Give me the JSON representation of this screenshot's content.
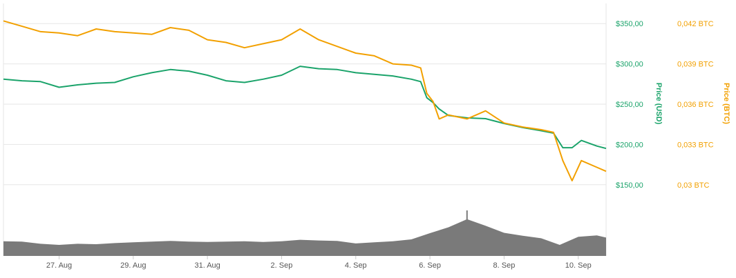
{
  "chart_data": {
    "type": "line",
    "x_axis": {
      "type": "date",
      "tick_labels": [
        "27. Aug",
        "29. Aug",
        "31. Aug",
        "2. Sep",
        "4. Sep",
        "6. Sep",
        "8. Sep",
        "10. Sep"
      ],
      "range": [
        "2018-08-25T12:00",
        "2018-09-10T18:00"
      ]
    },
    "y_axis_left": {
      "label": "Price (USD)",
      "tick_labels": [
        "$150,00",
        "$200,00",
        "$250,00",
        "$300,00",
        "$350,00"
      ],
      "tick_values": [
        150,
        200,
        250,
        300,
        350
      ],
      "range": [
        125,
        375
      ],
      "color": "#1aa36a"
    },
    "y_axis_right": {
      "label": "Price (BTC)",
      "tick_labels": [
        "0,03 BTC",
        "0,033 BTC",
        "0,036 BTC",
        "0,039 BTC",
        "0,042 BTC"
      ],
      "tick_values": [
        0.03,
        0.033,
        0.036,
        0.039,
        0.042
      ],
      "range": [
        0.0285,
        0.0435
      ],
      "color": "#f2a000"
    },
    "grid": true,
    "legend": "none",
    "series": [
      {
        "axis": "usd",
        "color": "#1aa36a",
        "points": [
          [
            "2018-08-25T12:00",
            281
          ],
          [
            "2018-08-26T00:00",
            279
          ],
          [
            "2018-08-26T12:00",
            278
          ],
          [
            "2018-08-27T00:00",
            271
          ],
          [
            "2018-08-27T12:00",
            274
          ],
          [
            "2018-08-28T00:00",
            276
          ],
          [
            "2018-08-28T12:00",
            277
          ],
          [
            "2018-08-29T00:00",
            284
          ],
          [
            "2018-08-29T12:00",
            289
          ],
          [
            "2018-08-30T00:00",
            293
          ],
          [
            "2018-08-30T12:00",
            291
          ],
          [
            "2018-08-31T00:00",
            286
          ],
          [
            "2018-08-31T12:00",
            279
          ],
          [
            "2018-09-01T00:00",
            277
          ],
          [
            "2018-09-01T12:00",
            281
          ],
          [
            "2018-09-02T00:00",
            286
          ],
          [
            "2018-09-02T12:00",
            297
          ],
          [
            "2018-09-03T00:00",
            294
          ],
          [
            "2018-09-03T12:00",
            293
          ],
          [
            "2018-09-04T00:00",
            289
          ],
          [
            "2018-09-04T12:00",
            287
          ],
          [
            "2018-09-05T00:00",
            285
          ],
          [
            "2018-09-05T12:00",
            281
          ],
          [
            "2018-09-05T18:00",
            278
          ],
          [
            "2018-09-05T22:00",
            258
          ],
          [
            "2018-09-06T02:00",
            252
          ],
          [
            "2018-09-06T06:00",
            244
          ],
          [
            "2018-09-06T12:00",
            236
          ],
          [
            "2018-09-07T00:00",
            233
          ],
          [
            "2018-09-07T12:00",
            232
          ],
          [
            "2018-09-08T00:00",
            226
          ],
          [
            "2018-09-08T12:00",
            221
          ],
          [
            "2018-09-09T00:00",
            217
          ],
          [
            "2018-09-09T08:00",
            214
          ],
          [
            "2018-09-09T14:00",
            196
          ],
          [
            "2018-09-09T20:00",
            196
          ],
          [
            "2018-09-10T02:00",
            205
          ],
          [
            "2018-09-10T12:00",
            198
          ],
          [
            "2018-09-10T18:00",
            195
          ]
        ]
      },
      {
        "axis": "btc",
        "color": "#f2a000",
        "points": [
          [
            "2018-08-25T12:00",
            0.0422
          ],
          [
            "2018-08-26T00:00",
            0.0418
          ],
          [
            "2018-08-26T12:00",
            0.0414
          ],
          [
            "2018-08-27T00:00",
            0.0413
          ],
          [
            "2018-08-27T12:00",
            0.0411
          ],
          [
            "2018-08-28T00:00",
            0.0416
          ],
          [
            "2018-08-28T12:00",
            0.0414
          ],
          [
            "2018-08-29T00:00",
            0.0413
          ],
          [
            "2018-08-29T12:00",
            0.0412
          ],
          [
            "2018-08-30T00:00",
            0.0417
          ],
          [
            "2018-08-30T12:00",
            0.0415
          ],
          [
            "2018-08-31T00:00",
            0.0408
          ],
          [
            "2018-08-31T12:00",
            0.0406
          ],
          [
            "2018-09-01T00:00",
            0.0402
          ],
          [
            "2018-09-01T12:00",
            0.0405
          ],
          [
            "2018-09-02T00:00",
            0.0408
          ],
          [
            "2018-09-02T12:00",
            0.0416
          ],
          [
            "2018-09-03T00:00",
            0.0408
          ],
          [
            "2018-09-03T12:00",
            0.0403
          ],
          [
            "2018-09-04T00:00",
            0.0398
          ],
          [
            "2018-09-04T12:00",
            0.0396
          ],
          [
            "2018-09-05T00:00",
            0.039
          ],
          [
            "2018-09-05T12:00",
            0.0389
          ],
          [
            "2018-09-05T18:00",
            0.0387
          ],
          [
            "2018-09-05T22:00",
            0.0368
          ],
          [
            "2018-09-06T02:00",
            0.0362
          ],
          [
            "2018-09-06T06:00",
            0.0349
          ],
          [
            "2018-09-06T12:00",
            0.0352
          ],
          [
            "2018-09-07T00:00",
            0.0349
          ],
          [
            "2018-09-07T12:00",
            0.0355
          ],
          [
            "2018-09-08T00:00",
            0.0346
          ],
          [
            "2018-09-08T12:00",
            0.0343
          ],
          [
            "2018-09-09T00:00",
            0.0341
          ],
          [
            "2018-09-09T08:00",
            0.0339
          ],
          [
            "2018-09-09T14:00",
            0.0318
          ],
          [
            "2018-09-09T20:00",
            0.0303
          ],
          [
            "2018-09-10T02:00",
            0.0318
          ],
          [
            "2018-09-10T12:00",
            0.0313
          ],
          [
            "2018-09-10T18:00",
            0.031
          ]
        ]
      },
      {
        "axis": "volume",
        "type": "area",
        "color": "#7a7a7a",
        "relative_levels": [
          [
            "2018-08-25T12:00",
            0.4
          ],
          [
            "2018-08-26T00:00",
            0.39
          ],
          [
            "2018-08-26T12:00",
            0.33
          ],
          [
            "2018-08-27T00:00",
            0.3
          ],
          [
            "2018-08-27T12:00",
            0.33
          ],
          [
            "2018-08-28T00:00",
            0.32
          ],
          [
            "2018-08-28T12:00",
            0.35
          ],
          [
            "2018-08-29T00:00",
            0.37
          ],
          [
            "2018-08-29T12:00",
            0.39
          ],
          [
            "2018-08-30T00:00",
            0.41
          ],
          [
            "2018-08-30T12:00",
            0.39
          ],
          [
            "2018-08-31T00:00",
            0.38
          ],
          [
            "2018-08-31T12:00",
            0.39
          ],
          [
            "2018-09-01T00:00",
            0.4
          ],
          [
            "2018-09-01T12:00",
            0.38
          ],
          [
            "2018-09-02T00:00",
            0.4
          ],
          [
            "2018-09-02T12:00",
            0.44
          ],
          [
            "2018-09-03T00:00",
            0.42
          ],
          [
            "2018-09-03T12:00",
            0.41
          ],
          [
            "2018-09-04T00:00",
            0.34
          ],
          [
            "2018-09-04T12:00",
            0.37
          ],
          [
            "2018-09-05T00:00",
            0.4
          ],
          [
            "2018-09-05T12:00",
            0.45
          ],
          [
            "2018-09-06T00:00",
            0.62
          ],
          [
            "2018-09-06T12:00",
            0.78
          ],
          [
            "2018-09-07T00:00",
            1.0
          ],
          [
            "2018-09-07T12:00",
            0.82
          ],
          [
            "2018-09-08T00:00",
            0.63
          ],
          [
            "2018-09-08T12:00",
            0.55
          ],
          [
            "2018-09-09T00:00",
            0.48
          ],
          [
            "2018-09-09T12:00",
            0.3
          ],
          [
            "2018-09-10T00:00",
            0.52
          ],
          [
            "2018-09-10T12:00",
            0.56
          ],
          [
            "2018-09-10T18:00",
            0.5
          ]
        ]
      }
    ]
  }
}
